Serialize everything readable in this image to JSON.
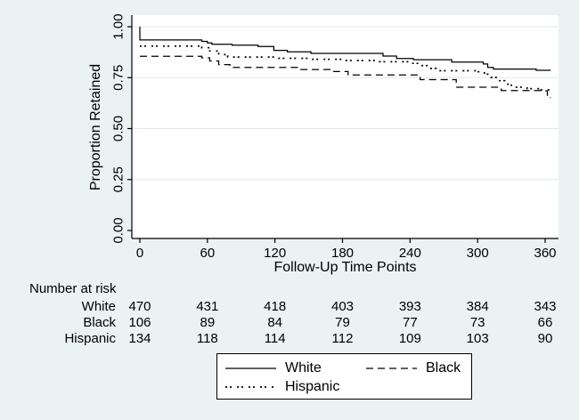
{
  "figure": {
    "background": "#eaf2f3",
    "plot_background": "#ffffff",
    "line_color": "#000000",
    "grid_color": "#dde8ea"
  },
  "chart_data": {
    "type": "line",
    "subtype": "kaplan-meier-step",
    "title": "",
    "xlabel": "Follow-Up Time Points",
    "ylabel": "Proportion Retained",
    "xlim": [
      0,
      372
    ],
    "ylim": [
      0,
      1
    ],
    "xticks": [
      0,
      60,
      120,
      180,
      240,
      300,
      360
    ],
    "ytick_labels": [
      "0.00",
      "0.25",
      "0.50",
      "0.75",
      "1.00"
    ],
    "grid": "horizontal-light",
    "legend_position": "bottom-center",
    "series": [
      {
        "name": "White",
        "style": "solid",
        "points": [
          [
            0,
            1.0
          ],
          [
            0,
            0.935
          ],
          [
            55,
            0.928
          ],
          [
            60,
            0.92
          ],
          [
            64,
            0.914
          ],
          [
            82,
            0.909
          ],
          [
            105,
            0.903
          ],
          [
            119,
            0.884
          ],
          [
            131,
            0.877
          ],
          [
            152,
            0.869
          ],
          [
            216,
            0.856
          ],
          [
            228,
            0.844
          ],
          [
            243,
            0.838
          ],
          [
            277,
            0.826
          ],
          [
            305,
            0.817
          ],
          [
            309,
            0.8
          ],
          [
            314,
            0.792
          ],
          [
            352,
            0.786
          ],
          [
            365,
            0.786
          ]
        ]
      },
      {
        "name": "Black",
        "style": "dashed",
        "points": [
          [
            0,
            0.855
          ],
          [
            55,
            0.847
          ],
          [
            62,
            0.832
          ],
          [
            70,
            0.814
          ],
          [
            80,
            0.8
          ],
          [
            140,
            0.79
          ],
          [
            170,
            0.78
          ],
          [
            185,
            0.763
          ],
          [
            249,
            0.74
          ],
          [
            281,
            0.703
          ],
          [
            321,
            0.687
          ],
          [
            360,
            0.685
          ],
          [
            362,
            0.652
          ],
          [
            365,
            0.652
          ]
        ]
      },
      {
        "name": "Hispanic",
        "style": "dotted",
        "points": [
          [
            0,
            0.905
          ],
          [
            55,
            0.897
          ],
          [
            62,
            0.881
          ],
          [
            70,
            0.863
          ],
          [
            78,
            0.851
          ],
          [
            122,
            0.845
          ],
          [
            152,
            0.84
          ],
          [
            182,
            0.834
          ],
          [
            212,
            0.828
          ],
          [
            240,
            0.82
          ],
          [
            250,
            0.809
          ],
          [
            256,
            0.795
          ],
          [
            263,
            0.784
          ],
          [
            300,
            0.779
          ],
          [
            306,
            0.767
          ],
          [
            312,
            0.751
          ],
          [
            318,
            0.735
          ],
          [
            324,
            0.718
          ],
          [
            330,
            0.703
          ],
          [
            344,
            0.696
          ],
          [
            356,
            0.69
          ],
          [
            365,
            0.687
          ]
        ]
      }
    ]
  },
  "risk_table": {
    "title": "Number at risk",
    "times": [
      0,
      60,
      120,
      180,
      240,
      300,
      360
    ],
    "rows": [
      {
        "label": "White",
        "counts": [
          470,
          431,
          418,
          403,
          393,
          384,
          343
        ]
      },
      {
        "label": "Black",
        "counts": [
          106,
          89,
          84,
          79,
          77,
          73,
          66
        ]
      },
      {
        "label": "Hispanic",
        "counts": [
          134,
          118,
          114,
          112,
          109,
          103,
          90
        ]
      }
    ]
  },
  "legend": {
    "entries": [
      {
        "label": "White",
        "style": "solid"
      },
      {
        "label": "Black",
        "style": "dashed"
      },
      {
        "label": "Hispanic",
        "style": "dotted"
      }
    ]
  }
}
